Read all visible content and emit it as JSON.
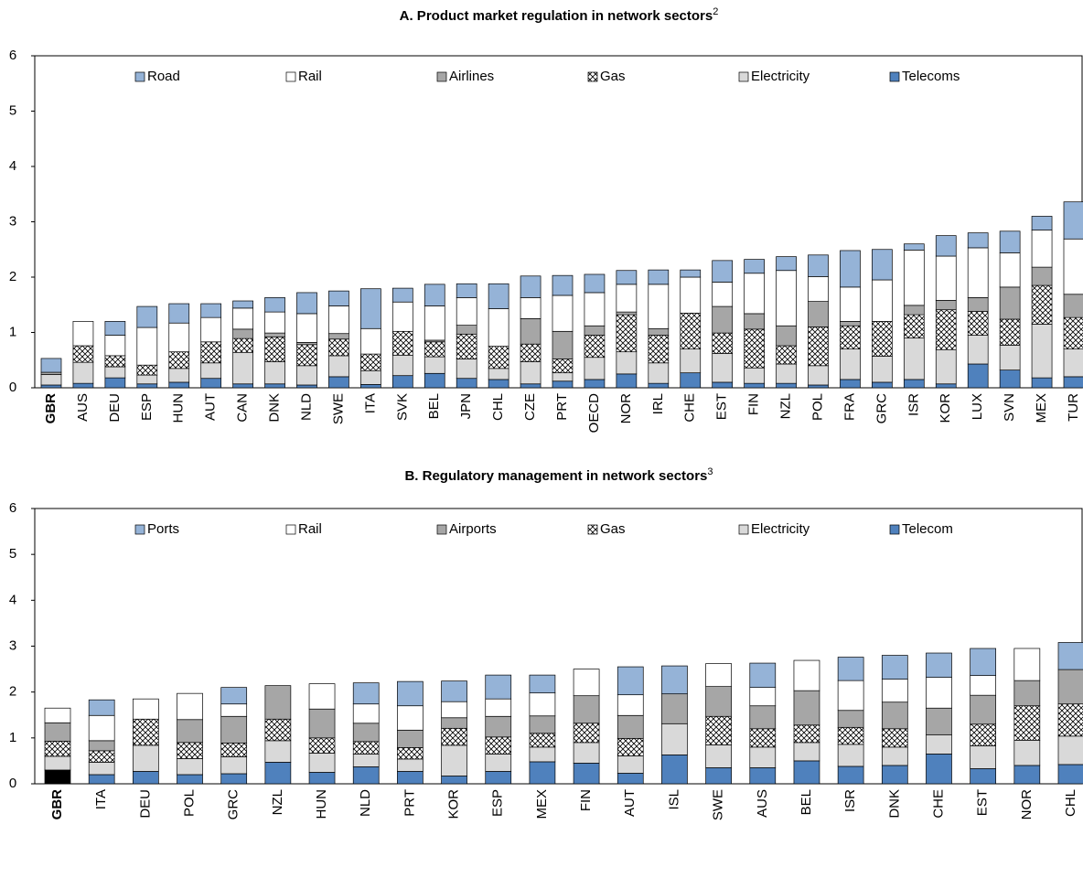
{
  "chart_data": [
    {
      "type": "stacked_bar",
      "title": "A. Product market regulation in network sectors",
      "title_sup": "2",
      "categories": [
        "GBR",
        "AUS",
        "DEU",
        "ESP",
        "HUN",
        "AUT",
        "CAN",
        "DNK",
        "NLD",
        "SWE",
        "ITA",
        "SVK",
        "BEL",
        "JPN",
        "CHL",
        "CZE",
        "PRT",
        "OECD",
        "NOR",
        "IRL",
        "CHE",
        "EST",
        "FIN",
        "NZL",
        "POL",
        "FRA",
        "GRC",
        "ISR",
        "KOR",
        "LUX",
        "SVN",
        "MEX",
        "TUR"
      ],
      "highlight": "GBR",
      "ylim": [
        0,
        6
      ],
      "yticks": [
        0,
        1,
        2,
        3,
        4,
        5,
        6
      ],
      "series": [
        {
          "name": "Telecoms",
          "color": "#4f81bd",
          "values": [
            0.05,
            0.08,
            0.18,
            0.07,
            0.1,
            0.17,
            0.07,
            0.07,
            0.05,
            0.2,
            0.06,
            0.22,
            0.26,
            0.17,
            0.15,
            0.07,
            0.12,
            0.15,
            0.25,
            0.08,
            0.27,
            0.1,
            0.08,
            0.08,
            0.05,
            0.15,
            0.1,
            0.15,
            0.07,
            0.43,
            0.32,
            0.18,
            0.2
          ]
        },
        {
          "name": "Electricity",
          "color": "#d9d9d9",
          "values": [
            0.19,
            0.38,
            0.2,
            0.16,
            0.25,
            0.28,
            0.57,
            0.4,
            0.35,
            0.38,
            0.25,
            0.37,
            0.3,
            0.35,
            0.2,
            0.4,
            0.15,
            0.4,
            0.4,
            0.37,
            0.43,
            0.52,
            0.28,
            0.35,
            0.35,
            0.55,
            0.47,
            0.75,
            0.62,
            0.52,
            0.45,
            0.97,
            0.5
          ]
        },
        {
          "name": "Gas",
          "color": "#ffffff",
          "pattern": "crosshatch",
          "values": [
            0.0,
            0.3,
            0.2,
            0.18,
            0.3,
            0.38,
            0.25,
            0.45,
            0.38,
            0.3,
            0.3,
            0.43,
            0.27,
            0.45,
            0.4,
            0.32,
            0.25,
            0.4,
            0.67,
            0.5,
            0.65,
            0.37,
            0.7,
            0.33,
            0.7,
            0.42,
            0.63,
            0.42,
            0.72,
            0.43,
            0.47,
            0.7,
            0.57
          ]
        },
        {
          "name": "Airlines",
          "color": "#a6a6a6",
          "values": [
            0.04,
            0.0,
            0.0,
            0.0,
            0.0,
            0.0,
            0.17,
            0.07,
            0.04,
            0.1,
            0.0,
            0.0,
            0.03,
            0.16,
            0.0,
            0.46,
            0.5,
            0.17,
            0.05,
            0.12,
            0.0,
            0.48,
            0.28,
            0.36,
            0.46,
            0.08,
            0.0,
            0.17,
            0.17,
            0.25,
            0.58,
            0.33,
            0.42
          ]
        },
        {
          "name": "Rail",
          "color": "#ffffff",
          "values": [
            0.0,
            0.44,
            0.37,
            0.68,
            0.52,
            0.44,
            0.38,
            0.38,
            0.52,
            0.5,
            0.46,
            0.53,
            0.62,
            0.5,
            0.68,
            0.38,
            0.65,
            0.6,
            0.5,
            0.8,
            0.65,
            0.44,
            0.73,
            1.0,
            0.45,
            0.62,
            0.75,
            1.0,
            0.8,
            0.9,
            0.62,
            0.67,
            1.0
          ]
        },
        {
          "name": "Road",
          "color": "#95b3d7",
          "values": [
            0.25,
            0.0,
            0.25,
            0.38,
            0.35,
            0.25,
            0.13,
            0.26,
            0.38,
            0.27,
            0.72,
            0.25,
            0.39,
            0.25,
            0.45,
            0.39,
            0.36,
            0.33,
            0.25,
            0.26,
            0.13,
            0.39,
            0.25,
            0.25,
            0.39,
            0.66,
            0.55,
            0.11,
            0.37,
            0.27,
            0.39,
            0.25,
            0.67
          ]
        }
      ]
    },
    {
      "type": "stacked_bar",
      "title": "B. Regulatory management in network sectors",
      "title_sup": "3",
      "categories": [
        "GBR",
        "ITA",
        "DEU",
        "POL",
        "GRC",
        "NZL",
        "HUN",
        "NLD",
        "PRT",
        "KOR",
        "ESP",
        "MEX",
        "FIN",
        "AUT",
        "ISL",
        "SWE",
        "AUS",
        "BEL",
        "ISR",
        "DNK",
        "CHE",
        "EST",
        "NOR",
        "CHL"
      ],
      "highlight": "GBR",
      "highlight_color": "#000000",
      "ylim": [
        0,
        6
      ],
      "yticks": [
        0,
        1,
        2,
        3,
        4,
        5,
        6
      ],
      "series": [
        {
          "name": "Telecom",
          "color": "#4f81bd",
          "values": [
            0.3,
            0.2,
            0.27,
            0.2,
            0.22,
            0.47,
            0.25,
            0.37,
            0.27,
            0.17,
            0.27,
            0.48,
            0.45,
            0.23,
            0.63,
            0.35,
            0.35,
            0.5,
            0.38,
            0.4,
            0.65,
            0.33,
            0.4,
            0.42
          ]
        },
        {
          "name": "Electricity",
          "color": "#d9d9d9",
          "values": [
            0.3,
            0.27,
            0.57,
            0.35,
            0.37,
            0.47,
            0.42,
            0.28,
            0.27,
            0.67,
            0.38,
            0.32,
            0.45,
            0.38,
            0.68,
            0.5,
            0.45,
            0.4,
            0.48,
            0.4,
            0.42,
            0.5,
            0.55,
            0.62
          ]
        },
        {
          "name": "Gas",
          "color": "#ffffff",
          "pattern": "crosshatch",
          "values": [
            0.33,
            0.25,
            0.57,
            0.35,
            0.3,
            0.47,
            0.33,
            0.27,
            0.25,
            0.37,
            0.37,
            0.3,
            0.42,
            0.38,
            0.0,
            0.62,
            0.4,
            0.38,
            0.37,
            0.4,
            0.0,
            0.47,
            0.75,
            0.7
          ]
        },
        {
          "name": "Airports",
          "color": "#a6a6a6",
          "values": [
            0.4,
            0.22,
            0.0,
            0.5,
            0.58,
            0.73,
            0.63,
            0.4,
            0.38,
            0.23,
            0.45,
            0.38,
            0.6,
            0.5,
            0.65,
            0.65,
            0.5,
            0.75,
            0.37,
            0.58,
            0.58,
            0.63,
            0.55,
            0.75
          ]
        },
        {
          "name": "Rail",
          "color": "#ffffff",
          "values": [
            0.32,
            0.55,
            0.44,
            0.57,
            0.27,
            0.0,
            0.55,
            0.42,
            0.53,
            0.35,
            0.38,
            0.5,
            0.58,
            0.45,
            0.0,
            0.5,
            0.4,
            0.66,
            0.65,
            0.5,
            0.67,
            0.43,
            0.7,
            0.0
          ]
        },
        {
          "name": "Ports",
          "color": "#95b3d7",
          "values": [
            0.0,
            0.34,
            0.0,
            0.0,
            0.36,
            0.0,
            0.0,
            0.46,
            0.53,
            0.45,
            0.52,
            0.39,
            0.0,
            0.61,
            0.61,
            0.0,
            0.53,
            0.0,
            0.51,
            0.52,
            0.53,
            0.59,
            0.0,
            0.59
          ]
        }
      ]
    }
  ]
}
